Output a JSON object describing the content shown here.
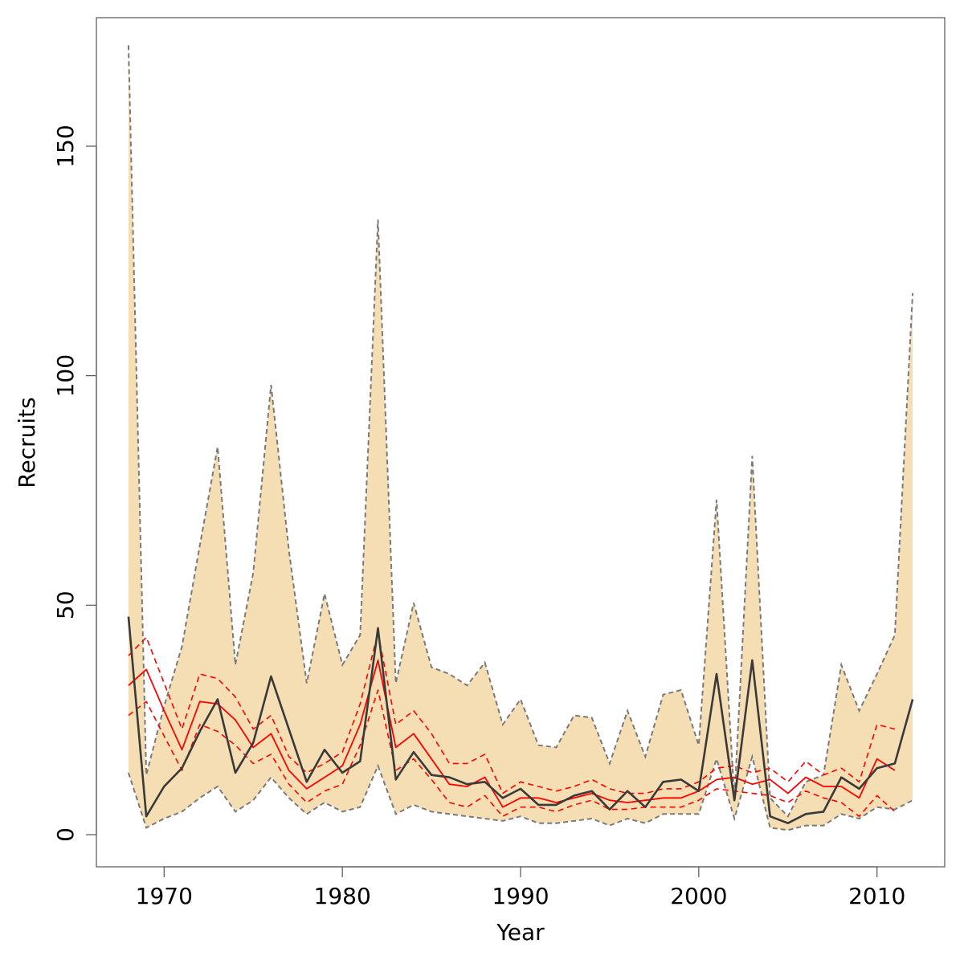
{
  "chart_data": {
    "type": "line",
    "title": "",
    "xlabel": "Year",
    "ylabel": "Recruits",
    "xlim": [
      1966.2,
      2013.8
    ],
    "ylim": [
      -7,
      178
    ],
    "x_ticks": [
      1970,
      1980,
      1990,
      2000,
      2010
    ],
    "y_ticks": [
      0,
      50,
      100,
      150
    ],
    "grid": false,
    "legend": "none",
    "colors": {
      "band_fill": "#f5deb3",
      "band_edge": "#7a7a7a",
      "series_main": "#3a3a3a",
      "series_red": "#ff0000"
    },
    "series": [
      {
        "role": "band",
        "style": "filled band with dashed gray edges",
        "x": [
          1968,
          1969,
          1970,
          1971,
          1972,
          1973,
          1974,
          1975,
          1976,
          1977,
          1978,
          1979,
          1980,
          1981,
          1982,
          1983,
          1984,
          1985,
          1986,
          1987,
          1988,
          1989,
          1990,
          1991,
          1992,
          1993,
          1994,
          1995,
          1996,
          1997,
          1998,
          1999,
          2000,
          2001,
          2002,
          2003,
          2004,
          2005,
          2006,
          2007,
          2008,
          2009,
          2010,
          2011,
          2012
        ],
        "lower": [
          13.5,
          1.5,
          3.5,
          5,
          8,
          10.5,
          5,
          7.5,
          12.5,
          8,
          4.5,
          7,
          5,
          6,
          15,
          4.5,
          6.5,
          5,
          4.5,
          4,
          3.5,
          3,
          4,
          2.5,
          2.5,
          3,
          3.5,
          2,
          3.5,
          2.5,
          4.5,
          4.5,
          4.5,
          16.5,
          3.5,
          17,
          1.5,
          1,
          2,
          2,
          4.5,
          3.5,
          6,
          5.5,
          7.5
        ],
        "upper": [
          172,
          13,
          28,
          41,
          63,
          84.5,
          37,
          57,
          98,
          62,
          33,
          52.5,
          37,
          43.5,
          134,
          33,
          50.5,
          36.5,
          35,
          32.5,
          37.5,
          24,
          29.5,
          19.5,
          19,
          26,
          25.5,
          15.5,
          27,
          17,
          30.5,
          31.5,
          19.5,
          73,
          8,
          82.5,
          8,
          4,
          11.5,
          13,
          37,
          27,
          35,
          43.5,
          118
        ]
      },
      {
        "role": "main",
        "style": "solid dark gray",
        "x": [
          1968,
          1969,
          1970,
          1971,
          1972,
          1973,
          1974,
          1975,
          1976,
          1977,
          1978,
          1979,
          1980,
          1981,
          1982,
          1983,
          1984,
          1985,
          1986,
          1987,
          1988,
          1989,
          1990,
          1991,
          1992,
          1993,
          1994,
          1995,
          1996,
          1997,
          1998,
          1999,
          2000,
          2001,
          2002,
          2003,
          2004,
          2005,
          2006,
          2007,
          2008,
          2009,
          2010,
          2011,
          2012
        ],
        "values": [
          47.5,
          4,
          10.5,
          14.5,
          22.5,
          29.5,
          13.5,
          20,
          34.5,
          23,
          11.5,
          18.5,
          13.5,
          16,
          45,
          12,
          18,
          13,
          12.5,
          11,
          11.5,
          8,
          10,
          6.5,
          6.5,
          8.5,
          9.5,
          5.5,
          9.5,
          6,
          11.5,
          12,
          9.5,
          35,
          7.5,
          38,
          4,
          2.5,
          4.5,
          5,
          12.5,
          10,
          14.5,
          15.5,
          29.5
        ]
      },
      {
        "role": "red-mid",
        "style": "solid red",
        "x": [
          1968,
          1969,
          1970,
          1971,
          1972,
          1973,
          1974,
          1975,
          1976,
          1977,
          1978,
          1979,
          1980,
          1981,
          1982,
          1983,
          1984,
          1985,
          1986,
          1987,
          1988,
          1989,
          1990,
          1991,
          1992,
          1993,
          1994,
          1995,
          1996,
          1997,
          1998,
          1999,
          2000,
          2001,
          2002,
          2003,
          2004,
          2005,
          2006,
          2007,
          2008,
          2009,
          2010,
          2011
        ],
        "values": [
          32.5,
          36,
          27,
          18.5,
          29,
          28.5,
          25,
          19,
          22,
          14,
          10,
          12.5,
          15,
          24,
          38,
          19,
          22,
          16.5,
          11,
          10.5,
          12.5,
          6,
          8,
          8,
          7,
          8,
          9,
          7.5,
          7,
          7.5,
          8,
          8,
          9.5,
          12,
          12.5,
          11,
          12,
          9,
          12.5,
          10.5,
          10.5,
          8,
          16.5,
          14
        ]
      },
      {
        "role": "red-upper",
        "style": "dashed red",
        "x": [
          1968,
          1969,
          1970,
          1971,
          1972,
          1973,
          1974,
          1975,
          1976,
          1977,
          1978,
          1979,
          1980,
          1981,
          1982,
          1983,
          1984,
          1985,
          1986,
          1987,
          1988,
          1989,
          1990,
          1991,
          1992,
          1993,
          1994,
          1995,
          1996,
          1997,
          1998,
          1999,
          2000,
          2001,
          2002,
          2003,
          2004,
          2005,
          2006,
          2007,
          2008,
          2009,
          2010,
          2011
        ],
        "values": [
          39,
          43,
          33,
          23,
          35,
          34,
          30,
          23,
          26,
          17,
          13.5,
          15.5,
          18,
          28.5,
          44,
          24,
          27,
          22,
          15.5,
          15.5,
          17.5,
          9,
          11.5,
          10.5,
          9.5,
          10.5,
          12,
          10,
          9,
          9,
          10,
          10,
          11.5,
          14.5,
          15,
          13.5,
          14.5,
          11.5,
          16,
          13,
          14.5,
          11.5,
          24,
          23
        ]
      },
      {
        "role": "red-lower",
        "style": "dashed red",
        "x": [
          1968,
          1969,
          1970,
          1971,
          1972,
          1973,
          1974,
          1975,
          1976,
          1977,
          1978,
          1979,
          1980,
          1981,
          1982,
          1983,
          1984,
          1985,
          1986,
          1987,
          1988,
          1989,
          1990,
          1991,
          1992,
          1993,
          1994,
          1995,
          1996,
          1997,
          1998,
          1999,
          2000,
          2001,
          2002,
          2003,
          2004,
          2005,
          2006,
          2007,
          2008,
          2009,
          2010,
          2011
        ],
        "values": [
          26,
          29,
          21.5,
          14,
          24,
          22.5,
          19.5,
          15.5,
          17.5,
          11,
          7,
          9.5,
          11,
          19.5,
          31.5,
          14,
          16.5,
          12,
          7,
          6,
          8.5,
          4,
          6,
          6,
          5,
          6.5,
          7.5,
          5.5,
          5.5,
          6,
          6,
          6,
          7.5,
          10,
          9.5,
          9,
          8.5,
          7,
          9.5,
          8,
          7,
          4,
          8.5,
          5
        ]
      }
    ]
  }
}
